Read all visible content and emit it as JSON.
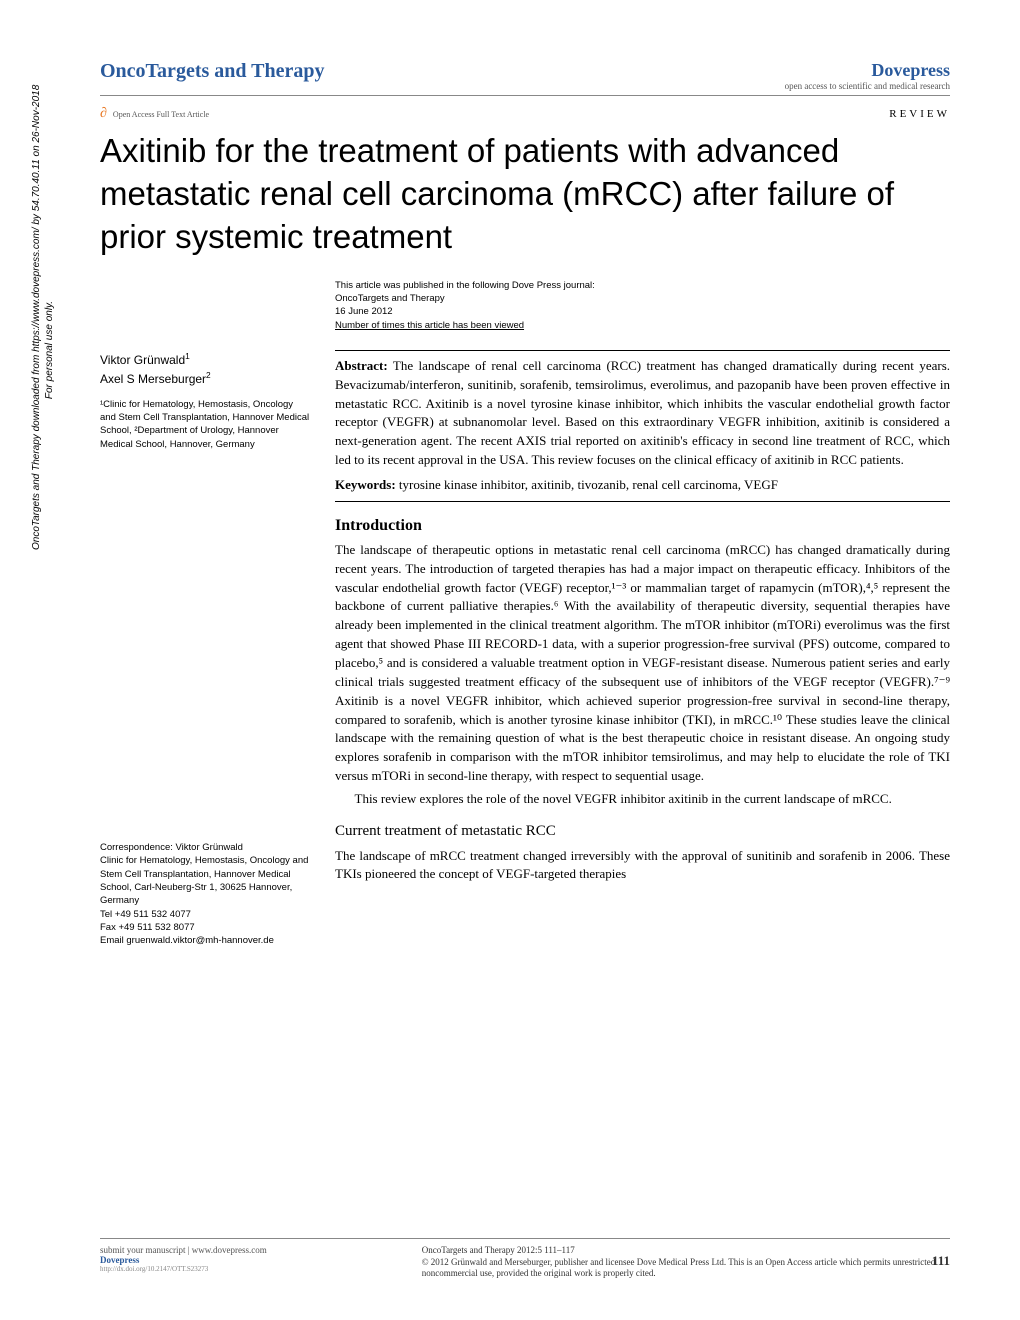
{
  "header": {
    "journal": "OncoTargets and Therapy",
    "publisher_logo": "Dovepress",
    "publisher_tagline": "open access to scientific and medical research",
    "open_access_label": "Open Access Full Text Article",
    "article_type": "REVIEW"
  },
  "title": "Axitinib for the treatment of patients with advanced metastatic renal cell carcinoma (mRCC) after failure of prior systemic treatment",
  "publication_info": {
    "line1": "This article was published in the following Dove Press journal:",
    "line2": "OncoTargets and Therapy",
    "line3": "16 June 2012",
    "line4": "Number of times this article has been viewed"
  },
  "authors": {
    "a1": "Viktor Grünwald",
    "a1_sup": "1",
    "a2": "Axel S Merseburger",
    "a2_sup": "2"
  },
  "affiliations": {
    "text": "¹Clinic for Hematology, Hemostasis, Oncology and Stem Cell Transplantation, Hannover Medical School, ²Department of Urology, Hannover Medical School, Hannover, Germany"
  },
  "correspondence": {
    "label": "Correspondence: Viktor Grünwald",
    "addr1": "Clinic for Hematology, Hemostasis, Oncology and Stem Cell Transplantation, Hannover Medical School, Carl-Neuberg-Str 1, 30625 Hannover, Germany",
    "tel": "Tel +49 511 532 4077",
    "fax": "Fax +49 511 532 8077",
    "email": "Email gruenwald.viktor@mh-hannover.de"
  },
  "abstract": {
    "label": "Abstract:",
    "text": "The landscape of renal cell carcinoma (RCC) treatment has changed dramatically during recent years. Bevacizumab/interferon, sunitinib, sorafenib, temsirolimus, everolimus, and pazopanib have been proven effective in metastatic RCC. Axitinib is a novel tyrosine kinase inhibitor, which inhibits the vascular endothelial growth factor receptor (VEGFR) at subnanomolar level. Based on this extraordinary VEGFR inhibition, axitinib is considered a next-generation agent. The recent AXIS trial reported on axitinib's efficacy in second line treatment of RCC, which led to its recent approval in the USA. This review focuses on the clinical efficacy of axitinib in RCC patients.",
    "kw_label": "Keywords:",
    "kw_text": "tyrosine kinase inhibitor, axitinib, tivozanib, renal cell carcinoma, VEGF"
  },
  "sections": {
    "intro_h": "Introduction",
    "intro_p1": "The landscape of therapeutic options in metastatic renal cell carcinoma (mRCC) has changed dramatically during recent years. The introduction of targeted therapies has had a major impact on therapeutic efficacy. Inhibitors of the vascular endothelial growth factor (VEGF) receptor,¹⁻³ or mammalian target of rapamycin (mTOR),⁴,⁵ represent the backbone of current palliative therapies.⁶ With the availability of therapeutic diversity, sequential therapies have already been implemented in the clinical treatment algorithm. The mTOR inhibitor (mTORi) everolimus was the first agent that showed Phase III RECORD-1 data, with a superior progression-free survival (PFS) outcome, compared to placebo,⁵ and is considered a valuable treatment option in VEGF-resistant disease. Numerous patient series and early clinical trials suggested treatment efficacy of the subsequent use of inhibitors of the VEGF receptor (VEGFR).⁷⁻⁹ Axitinib is a novel VEGFR inhibitor, which achieved superior progression-free survival in second-line therapy, compared to sorafenib, which is another tyrosine kinase inhibitor (TKI), in mRCC.¹⁰ These studies leave the clinical landscape with the remaining question of what is the best therapeutic choice in resistant disease. An ongoing study explores sorafenib in comparison with the mTOR inhibitor temsirolimus, and may help to elucidate the role of TKI versus mTORi in second-line therapy, with respect to sequential usage.",
    "intro_p2": "This review explores the role of the novel VEGFR inhibitor axitinib in the current landscape of mRCC.",
    "sub1_h": "Current treatment of metastatic RCC",
    "sub1_p1": "The landscape of mRCC treatment changed irreversibly with the approval of sunitinib and sorafenib in 2006. These TKIs pioneered the concept of VEGF-targeted therapies"
  },
  "vertical_note": {
    "line1": "OncoTargets and Therapy downloaded from https://www.dovepress.com/ by 54.70.40.11 on 26-Nov-2018",
    "line2": "For personal use only."
  },
  "footer": {
    "submit": "submit your manuscript | www.dovepress.com",
    "dove": "Dovepress",
    "doi": "http://dx.doi.org/10.2147/OTT.S23273",
    "citation": "OncoTargets and Therapy 2012:5 111–117",
    "copyright": "© 2012 Grünwald and Merseburger, publisher and licensee Dove Medical Press Ltd. This is an Open Access article which permits unrestricted noncommercial use, provided the original work is properly cited.",
    "page_num": "111"
  },
  "colors": {
    "accent": "#2a5a9c",
    "orange": "#e87722",
    "text": "#000000",
    "muted": "#555555",
    "rule": "#888888",
    "bg": "#ffffff"
  },
  "typography": {
    "title_fontsize": 33,
    "body_fontsize": 13,
    "small_fontsize": 9.5,
    "header_journal_fontsize": 20
  }
}
